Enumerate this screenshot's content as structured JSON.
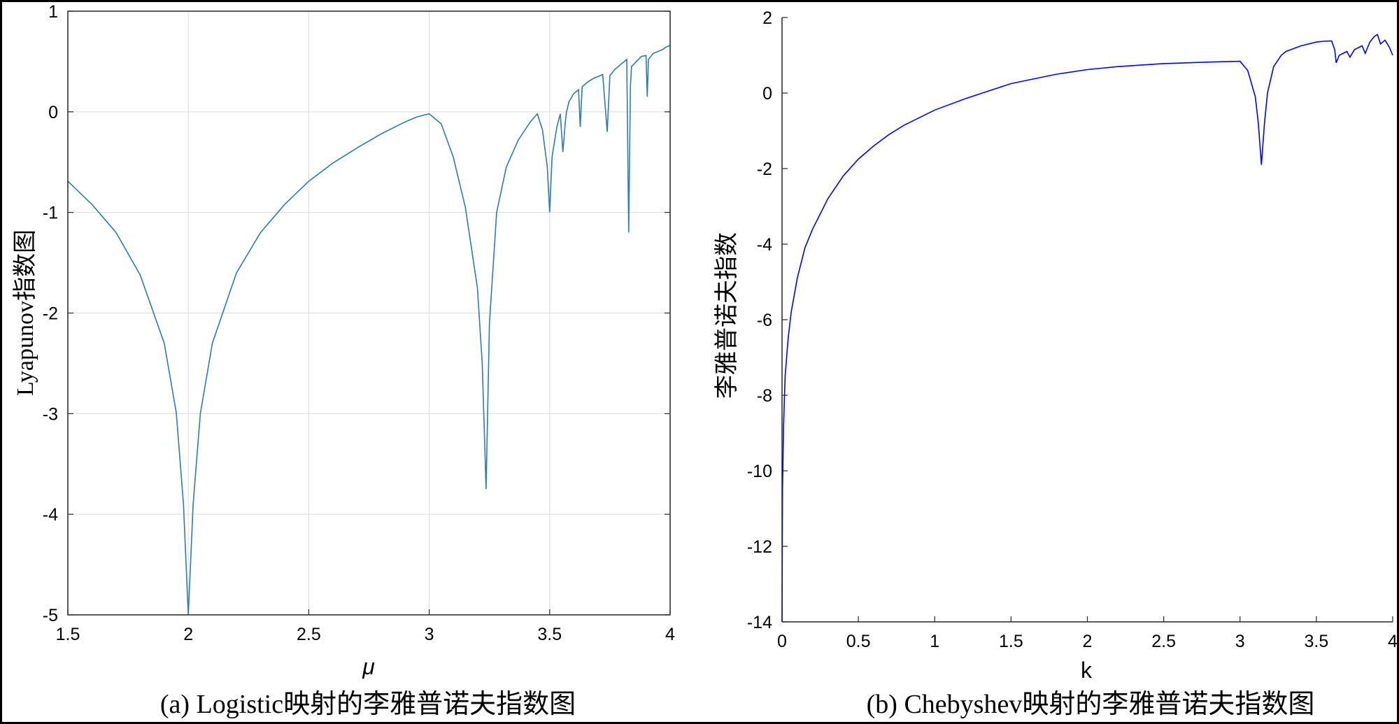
{
  "chart_data": [
    {
      "type": "line",
      "caption": "(a) Logistic映射的李雅普诺夫指数图",
      "xlabel": "μ",
      "ylabel": "Lyapunov指数图",
      "xlim": [
        1.5,
        4
      ],
      "ylim": [
        -5,
        1
      ],
      "xticks": [
        "1.5",
        "2",
        "2.5",
        "3",
        "3.5",
        "4"
      ],
      "yticks": [
        "-5",
        "-4",
        "-3",
        "-2",
        "-1",
        "0",
        "1"
      ],
      "grid": true,
      "color": "#2b7bba",
      "series": [
        {
          "x": [
            1.5,
            1.6,
            1.7,
            1.8,
            1.9,
            1.95,
            1.98,
            2.0,
            2.02,
            2.05,
            2.1,
            2.2,
            2.3,
            2.4,
            2.5,
            2.6,
            2.7,
            2.8,
            2.9,
            2.95,
            3.0,
            3.05,
            3.1,
            3.15,
            3.2,
            3.22,
            3.236,
            3.25,
            3.28,
            3.32,
            3.37,
            3.42,
            3.449,
            3.47,
            3.49,
            3.5,
            3.51,
            3.53,
            3.544,
            3.555,
            3.565,
            3.57,
            3.58,
            3.6,
            3.62,
            3.627,
            3.635,
            3.66,
            3.68,
            3.7,
            3.72,
            3.739,
            3.75,
            3.77,
            3.8,
            3.82,
            3.828,
            3.835,
            3.84,
            3.86,
            3.88,
            3.9,
            3.905,
            3.91,
            3.93,
            3.95,
            3.97,
            3.98,
            4.0
          ],
          "y": [
            -0.69,
            -0.92,
            -1.2,
            -1.62,
            -2.3,
            -2.99,
            -3.9,
            -5.0,
            -3.9,
            -3.0,
            -2.3,
            -1.6,
            -1.2,
            -0.92,
            -0.69,
            -0.51,
            -0.36,
            -0.22,
            -0.1,
            -0.05,
            -0.02,
            -0.12,
            -0.45,
            -0.95,
            -1.75,
            -2.5,
            -3.75,
            -2.1,
            -1.0,
            -0.55,
            -0.28,
            -0.1,
            -0.02,
            -0.18,
            -0.55,
            -1.0,
            -0.45,
            -0.15,
            -0.02,
            -0.4,
            -0.1,
            0.0,
            0.1,
            0.18,
            0.22,
            -0.15,
            0.25,
            0.3,
            0.33,
            0.35,
            0.37,
            -0.2,
            0.36,
            0.42,
            0.48,
            0.52,
            -1.2,
            0.25,
            0.45,
            0.5,
            0.55,
            0.56,
            0.15,
            0.52,
            0.58,
            0.6,
            0.62,
            0.64,
            0.66
          ]
        }
      ]
    },
    {
      "type": "line",
      "caption": "(b) Chebyshev映射的李雅普诺夫指数图",
      "xlabel": "k",
      "ylabel": "李雅普诺夫指数",
      "xlim": [
        0,
        4
      ],
      "ylim": [
        -14,
        2
      ],
      "xticks": [
        "0",
        "0.5",
        "1",
        "1.5",
        "2",
        "2.5",
        "3",
        "3.5",
        "4"
      ],
      "yticks": [
        "-14",
        "-12",
        "-10",
        "-8",
        "-6",
        "-4",
        "-2",
        "0",
        "2"
      ],
      "grid": false,
      "color": "#0000ff",
      "series": [
        {
          "x": [
            0.0,
            0.003,
            0.01,
            0.02,
            0.04,
            0.06,
            0.1,
            0.15,
            0.2,
            0.3,
            0.4,
            0.5,
            0.6,
            0.7,
            0.8,
            1.0,
            1.2,
            1.5,
            1.8,
            2.0,
            2.2,
            2.5,
            2.8,
            3.0,
            3.05,
            3.1,
            3.12,
            3.14,
            3.16,
            3.18,
            3.22,
            3.27,
            3.3,
            3.4,
            3.5,
            3.55,
            3.6,
            3.62,
            3.63,
            3.65,
            3.7,
            3.72,
            3.75,
            3.8,
            3.82,
            3.85,
            3.88,
            3.9,
            3.92,
            3.95,
            3.98,
            4.0
          ],
          "y": [
            -14.0,
            -10.5,
            -8.8,
            -7.5,
            -6.5,
            -5.8,
            -4.9,
            -4.1,
            -3.6,
            -2.8,
            -2.2,
            -1.75,
            -1.4,
            -1.1,
            -0.85,
            -0.45,
            -0.15,
            0.25,
            0.5,
            0.62,
            0.7,
            0.78,
            0.82,
            0.84,
            0.6,
            -0.1,
            -0.8,
            -1.9,
            -0.8,
            0.0,
            0.7,
            1.0,
            1.1,
            1.25,
            1.35,
            1.37,
            1.38,
            1.15,
            0.8,
            1.0,
            1.1,
            0.95,
            1.15,
            1.25,
            1.05,
            1.35,
            1.5,
            1.55,
            1.3,
            1.4,
            1.2,
            1.0
          ]
        }
      ]
    }
  ]
}
